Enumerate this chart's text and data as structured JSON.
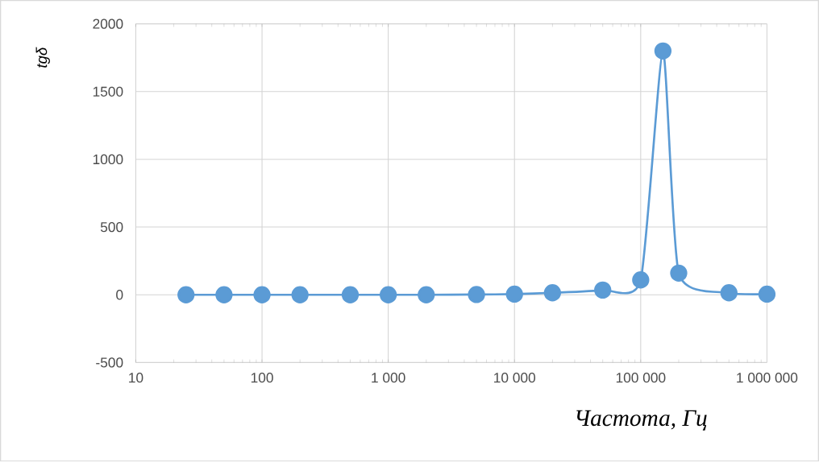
{
  "chart_data": {
    "type": "line",
    "xlabel": "Частота, Гц",
    "ylabel": "tgδ",
    "x": [
      25,
      50,
      100,
      200,
      500,
      1000,
      2000,
      5000,
      10000,
      20000,
      50000,
      100000,
      150000,
      200000,
      500000,
      1000000
    ],
    "series": [
      {
        "color": "#5b9bd5",
        "values": [
          0,
          0,
          0,
          0,
          0,
          0,
          0,
          2,
          5,
          15,
          35,
          110,
          1800,
          160,
          15,
          5
        ]
      }
    ],
    "log": "x",
    "xlim": [
      10,
      1000000
    ],
    "ylim": [
      -500,
      2000
    ],
    "xticks": [
      {
        "value": 10,
        "label": "10"
      },
      {
        "value": 100,
        "label": "100"
      },
      {
        "value": 1000,
        "label": "1 000"
      },
      {
        "value": 10000,
        "label": "10 000"
      },
      {
        "value": 100000,
        "label": "100 000"
      },
      {
        "value": 1000000,
        "label": "1 000 000"
      }
    ],
    "yticks": [
      -500,
      0,
      500,
      1000,
      1500,
      2000
    ],
    "grid": true,
    "marker": "circle",
    "line_style": "solid"
  }
}
